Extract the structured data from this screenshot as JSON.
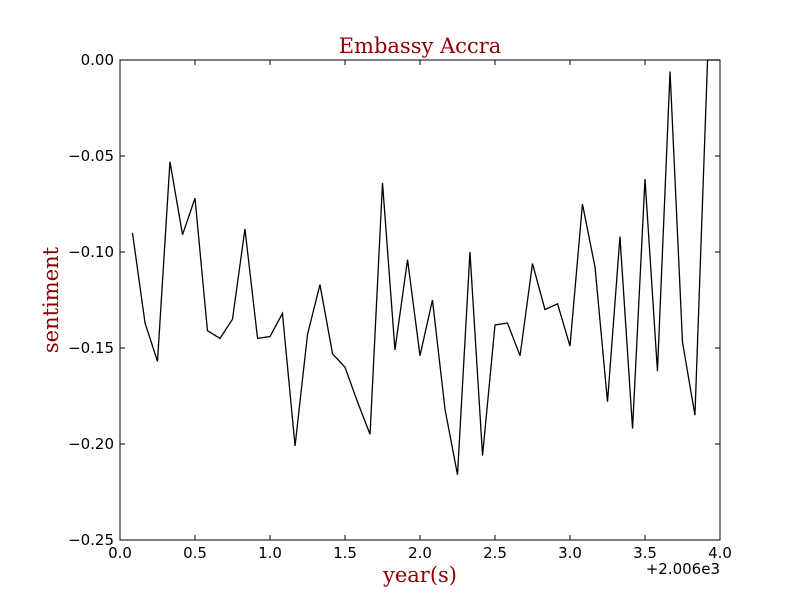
{
  "chart_data": {
    "type": "line",
    "title": "Embassy Accra",
    "xlabel": "year(s)",
    "ylabel": "sentiment",
    "x_offset_label": "+2.006e3",
    "xlim": [
      0.0,
      4.0
    ],
    "ylim": [
      -0.25,
      0.0
    ],
    "x_ticks": [
      0.0,
      0.5,
      1.0,
      1.5,
      2.0,
      2.5,
      3.0,
      3.5,
      4.0
    ],
    "x_tick_labels": [
      "0.0",
      "0.5",
      "1.0",
      "1.5",
      "2.0",
      "2.5",
      "3.0",
      "3.5",
      "4.0"
    ],
    "y_ticks": [
      0.0,
      -0.05,
      -0.1,
      -0.15,
      -0.2,
      -0.25
    ],
    "y_tick_labels": [
      "0.00",
      "−0.05",
      "−0.10",
      "−0.15",
      "−0.20",
      "−0.25"
    ],
    "grid": false,
    "colors": {
      "line": "#000000",
      "title": "#8b0000",
      "axis_label": "#8b0000"
    },
    "series": [
      {
        "x": [
          0.083,
          0.167,
          0.25,
          0.333,
          0.417,
          0.5,
          0.583,
          0.667,
          0.75,
          0.833,
          0.917,
          1.0,
          1.083,
          1.167,
          1.25,
          1.333,
          1.417,
          1.5,
          1.583,
          1.667,
          1.75,
          1.833,
          1.917,
          2.0,
          2.083,
          2.167,
          2.25,
          2.333,
          2.417,
          2.5,
          2.583,
          2.667,
          2.75,
          2.833,
          2.917,
          3.0,
          3.083,
          3.167,
          3.25,
          3.333,
          3.417,
          3.5,
          3.583,
          3.667,
          3.75,
          3.833,
          3.917,
          4.0
        ],
        "values": [
          -0.09,
          -0.137,
          -0.157,
          -0.053,
          -0.091,
          -0.072,
          -0.141,
          -0.145,
          -0.135,
          -0.088,
          -0.145,
          -0.144,
          -0.132,
          -0.201,
          -0.143,
          -0.117,
          -0.153,
          -0.16,
          -0.178,
          -0.195,
          -0.064,
          -0.151,
          -0.104,
          -0.154,
          -0.125,
          -0.182,
          -0.216,
          -0.1,
          -0.206,
          -0.138,
          -0.137,
          -0.154,
          -0.106,
          -0.13,
          -0.127,
          -0.149,
          -0.075,
          -0.108,
          -0.178,
          -0.092,
          -0.192,
          -0.062,
          -0.162,
          -0.006,
          -0.147,
          -0.185,
          0.0,
          0.0
        ]
      }
    ]
  }
}
